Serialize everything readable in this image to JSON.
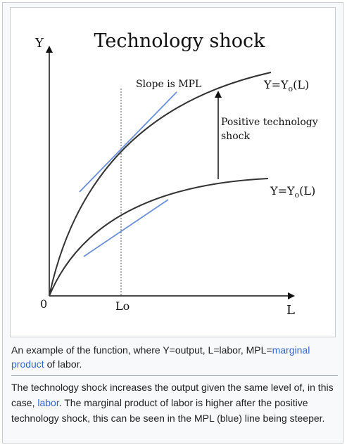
{
  "figure": {
    "title": "Technology shock",
    "y_axis_label": "Y",
    "x_axis_label": "L",
    "origin_label": "0",
    "l0_label": "Lo",
    "slope_label": "Slope is MPL",
    "upper_curve": {
      "prefix": "Y=Y",
      "sub": "o",
      "suffix": "(L)"
    },
    "lower_curve": {
      "prefix": "Y=Y",
      "sub": "o",
      "suffix": "(L)"
    },
    "shock_label_line1": "Positive technology",
    "shock_label_line2": "shock",
    "colors": {
      "curve": "#333333",
      "tangent": "#6a8fd8",
      "axis": "#111111"
    }
  },
  "caption": {
    "part1": "An example of the function, where Y=output, L=labor, MPL=",
    "link": "marginal product",
    "part2": " of labor."
  },
  "description": {
    "part1": "The technology shock increases the output given the same level of, in this case, ",
    "link": "labor",
    "part2": ". The marginal product of labor is higher after the positive technology shock, this can be seen in the MPL (blue) line being steeper."
  }
}
